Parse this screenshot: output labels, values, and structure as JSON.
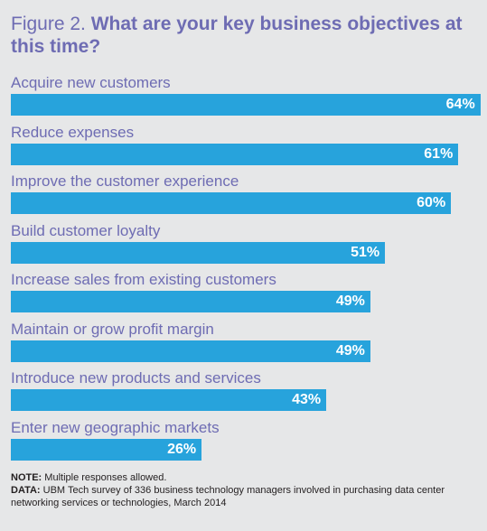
{
  "title": {
    "figure": "Figure 2.",
    "question": "What are your key business objectives at this time?"
  },
  "chart_data": {
    "type": "bar",
    "orientation": "horizontal",
    "categories": [
      "Acquire new customers",
      "Reduce expenses",
      "Improve the customer experience",
      "Build customer loyalty",
      "Increase sales from existing customers",
      "Maintain or grow profit margin",
      "Introduce new products and services",
      "Enter new geographic markets"
    ],
    "values": [
      64,
      61,
      60,
      51,
      49,
      49,
      43,
      26
    ],
    "value_labels": [
      "64%",
      "61%",
      "60%",
      "51%",
      "49%",
      "49%",
      "43%",
      "26%"
    ],
    "unit": "%",
    "bar_color": "#27a3dc",
    "label_color": "#6e6cb3",
    "grid": false
  },
  "notes": {
    "note_label": "NOTE:",
    "note_text": " Multiple responses allowed.",
    "data_label": "DATA:",
    "data_text": " UBM Tech survey of 336 business technology managers involved in purchasing data center networking services or technologies, March 2014"
  }
}
